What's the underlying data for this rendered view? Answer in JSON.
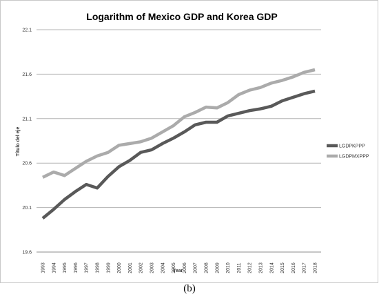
{
  "chart_data": {
    "type": "line",
    "title": "Logarithm of Mexico GDP and Korea GDP",
    "xlabel": "Year",
    "ylabel": "Título del eje",
    "ylim": [
      19.6,
      22.1
    ],
    "yticks": [
      "19.6",
      "20.1",
      "20.6",
      "21.1",
      "21.6",
      "22.1"
    ],
    "grid": true,
    "legend_position": "right",
    "categories": [
      "1993",
      "1994",
      "1995",
      "1996",
      "1997",
      "1998",
      "1999",
      "2000",
      "2001",
      "2002",
      "2003",
      "2004",
      "2005",
      "2006",
      "2007",
      "2008",
      "2009",
      "2010",
      "2011",
      "2012",
      "2013",
      "2014",
      "2015",
      "2016",
      "2017",
      "2018"
    ],
    "series": [
      {
        "name": "LGDPKPPP",
        "color": "#595959",
        "values": [
          19.98,
          20.08,
          20.19,
          20.28,
          20.36,
          20.32,
          20.45,
          20.56,
          20.63,
          20.72,
          20.75,
          20.82,
          20.88,
          20.95,
          21.03,
          21.06,
          21.06,
          21.13,
          21.16,
          21.19,
          21.21,
          21.24,
          21.3,
          21.34,
          21.38,
          21.41
        ]
      },
      {
        "name": "LGDPMXPPP",
        "color": "#ababab",
        "values": [
          20.44,
          20.5,
          20.46,
          20.54,
          20.62,
          20.68,
          20.72,
          20.8,
          20.82,
          20.84,
          20.88,
          20.95,
          21.02,
          21.12,
          21.17,
          21.23,
          21.22,
          21.28,
          21.37,
          21.42,
          21.45,
          21.5,
          21.53,
          21.57,
          21.62,
          21.65
        ]
      }
    ]
  },
  "caption": "(b)"
}
